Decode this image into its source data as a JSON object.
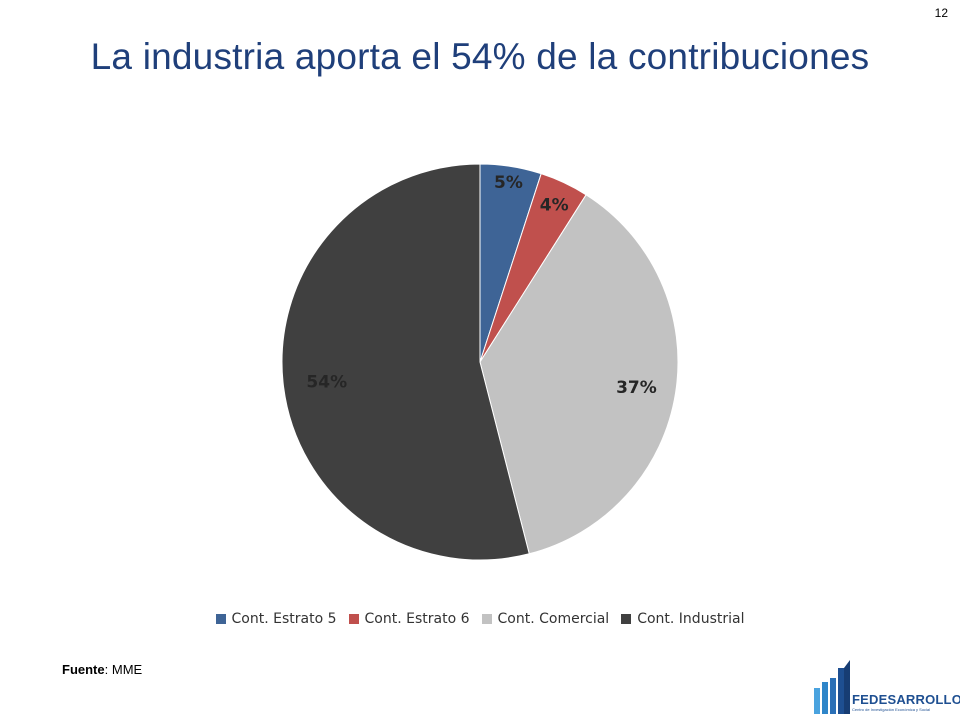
{
  "page": {
    "number": "12"
  },
  "title": "La industria aporta el 54% de la contribuciones",
  "source": {
    "label": "Fuente",
    "separator": ":",
    "value": " MME"
  },
  "logo": {
    "name": "FEDESARROLLO",
    "tagline": "Centro de Investigación Económica y Social"
  },
  "chart_data": {
    "type": "pie",
    "title": "",
    "start_angle_deg": 0,
    "direction": "clockwise",
    "legend_position": "bottom",
    "categories": [
      "Cont. Estrato 5",
      "Cont. Estrato 6",
      "Cont. Comercial",
      "Cont. Industrial"
    ],
    "values": [
      5,
      4,
      37,
      54
    ],
    "labels": [
      "5%",
      "4%",
      "37%",
      "54%"
    ],
    "colors": [
      "#3e6496",
      "#c0504d",
      "#c2c2c2",
      "#404040"
    ]
  }
}
